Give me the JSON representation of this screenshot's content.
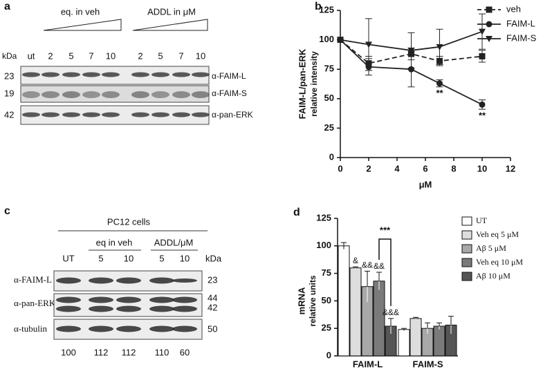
{
  "blot_a": {
    "label": "a",
    "kda_header": "kDa",
    "lanes": [
      "ut",
      "2",
      "5",
      "7",
      "10",
      "2",
      "5",
      "7",
      "10"
    ],
    "groups": [
      "eq. in veh",
      "ADDL in μM"
    ],
    "rows": [
      {
        "kda": "23",
        "antibody": "α-FAIM-L"
      },
      {
        "kda": "19",
        "antibody": "α-FAIM-S"
      },
      {
        "kda": "42",
        "antibody": "α-pan-ERK"
      }
    ]
  },
  "blot_c": {
    "label": "c",
    "title": "PC12 cells",
    "kda_header": "kDa",
    "lanes": [
      "UT",
      "5",
      "10",
      "5",
      "10"
    ],
    "groups": [
      "eq in veh",
      "ADDL/μM"
    ],
    "rows": [
      {
        "antibody": "α-FAIM-L",
        "kda": [
          "23"
        ]
      },
      {
        "antibody": "α-pan-ERK",
        "kda": [
          "44",
          "42"
        ]
      },
      {
        "antibody": "α-tubulin",
        "kda": [
          "50"
        ]
      }
    ],
    "quantification": [
      100,
      112,
      112,
      110,
      60
    ]
  },
  "chart_data": [
    {
      "type": "line",
      "panel_label": "b",
      "y_label": "FAIM-L/pan-ERK",
      "y_sublabel": "relative intensity",
      "x_label": "μM",
      "x": [
        0,
        2,
        5,
        7,
        10
      ],
      "xlim": [
        0,
        12
      ],
      "xticks": [
        0,
        2,
        4,
        6,
        8,
        10,
        12
      ],
      "ylim": [
        0,
        125
      ],
      "yticks": [
        0,
        25,
        50,
        75,
        100,
        125
      ],
      "legend": "upper right",
      "series": [
        {
          "name": "veh",
          "color": "#222222",
          "dash": true,
          "marker": "square",
          "values": [
            100,
            80,
            88,
            82,
            86
          ],
          "errors": [
            0,
            6,
            5,
            4,
            5
          ]
        },
        {
          "name": "FAIM-L",
          "color": "#222222",
          "dash": false,
          "marker": "circle",
          "values": [
            100,
            77,
            75,
            63,
            45
          ],
          "errors": [
            0,
            7,
            15,
            3,
            4
          ],
          "annotations": [
            null,
            null,
            null,
            "**",
            "**"
          ]
        },
        {
          "name": "FAIM-S",
          "color": "#222222",
          "dash": false,
          "marker": "triangle-down",
          "values": [
            100,
            96,
            91,
            94,
            107
          ],
          "errors": [
            0,
            22,
            15,
            15,
            15
          ]
        }
      ]
    },
    {
      "type": "bar",
      "panel_label": "d",
      "y_label": "mRNA",
      "y_sublabel": "relative units",
      "categories": [
        "FAIM-L",
        "FAIM-S"
      ],
      "ylim": [
        0,
        125
      ],
      "yticks": [
        0,
        25,
        50,
        75,
        100,
        125
      ],
      "legend": "upper right",
      "bracket_label": "***",
      "series": [
        {
          "name": "UT",
          "color": "#ffffff",
          "values": [
            100,
            24
          ],
          "errors": [
            3,
            1
          ]
        },
        {
          "name": "Veh eq 5 μM",
          "color": "#dddddd",
          "values": [
            80,
            34
          ],
          "errors": [
            1,
            1
          ],
          "annotations": [
            "&",
            null
          ]
        },
        {
          "name": "Aβ 5 μM",
          "color": "#a8a8a8",
          "values": [
            63,
            25
          ],
          "errors": [
            14,
            5
          ],
          "annotations": [
            "&&",
            null
          ]
        },
        {
          "name": "Veh eq 10 μM",
          "color": "#7a7a7a",
          "values": [
            68,
            27
          ],
          "errors": [
            8,
            3
          ],
          "annotations": [
            "&&",
            null
          ]
        },
        {
          "name": "Aβ 10 μM",
          "color": "#555555",
          "values": [
            27,
            28
          ],
          "errors": [
            7,
            8
          ],
          "annotations": [
            "&&&",
            null
          ]
        }
      ]
    }
  ]
}
